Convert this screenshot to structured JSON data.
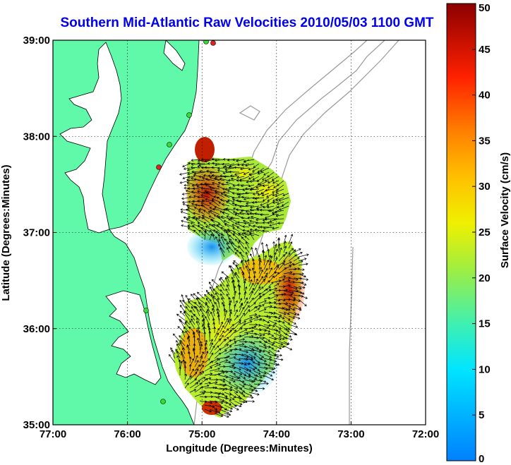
{
  "title": "Southern Mid-Atlantic Raw Velocities 2010/05/03 1100 GMT",
  "xlabel": "Longitude (Degrees:Minutes)",
  "ylabel": "Latitude (Degrees:Minutes)",
  "x_ticks": [
    "77:00",
    "76:00",
    "75:00",
    "74:00",
    "73:00",
    "72:00"
  ],
  "y_ticks": [
    "39:00",
    "38:00",
    "37:00",
    "36:00",
    "35:00"
  ],
  "colorbar": {
    "label": "Surface Velocity (cm/s)",
    "ticks": [
      "0",
      "5",
      "10",
      "15",
      "20",
      "25",
      "30",
      "35",
      "40",
      "45",
      "50"
    ],
    "min": 0,
    "max": 50
  },
  "colors": {
    "land": "#5ff9a9",
    "title": "#0000ee",
    "coastline": "#000000",
    "bathymetry": "#999999",
    "station": "#33dd33"
  },
  "extent": {
    "lon_min": -77,
    "lon_max": -72,
    "lat_min": 35,
    "lat_max": 39
  }
}
